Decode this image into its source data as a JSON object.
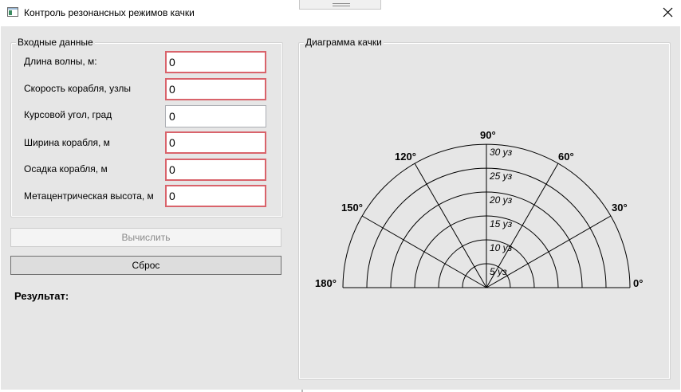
{
  "window": {
    "title": "Контроль резонансных режимов качки",
    "icon": "app-window-icon",
    "close_icon": "close-icon"
  },
  "input_group": {
    "title": "Входные данные",
    "fields": [
      {
        "label": "Длина волны, м:",
        "value": "0",
        "invalid": true
      },
      {
        "label": "Скорость корабля, узлы",
        "value": "0",
        "invalid": true
      },
      {
        "label": "Курсовой угол, град",
        "value": "0",
        "invalid": false
      },
      {
        "label": "Ширина корабля, м",
        "value": "0",
        "invalid": true
      },
      {
        "label": "Осадка корабля, м",
        "value": "0",
        "invalid": true
      },
      {
        "label": "Метацентрическая высота, м",
        "value": "0",
        "invalid": true
      }
    ]
  },
  "buttons": {
    "calculate": "Вычислить",
    "reset": "Сброс"
  },
  "result": {
    "label": "Результат:"
  },
  "diagram": {
    "title": "Диаграмма качки",
    "angle_labels": [
      "0°",
      "30°",
      "60°",
      "90°",
      "120°",
      "150°",
      "180°"
    ],
    "ring_labels": [
      "5 уз",
      "10 уз",
      "15 уз",
      "20 уз",
      "25 уз",
      "30 уз"
    ]
  },
  "colors": {
    "invalid_border": "#d9636b",
    "background": "#e6e6e6"
  }
}
